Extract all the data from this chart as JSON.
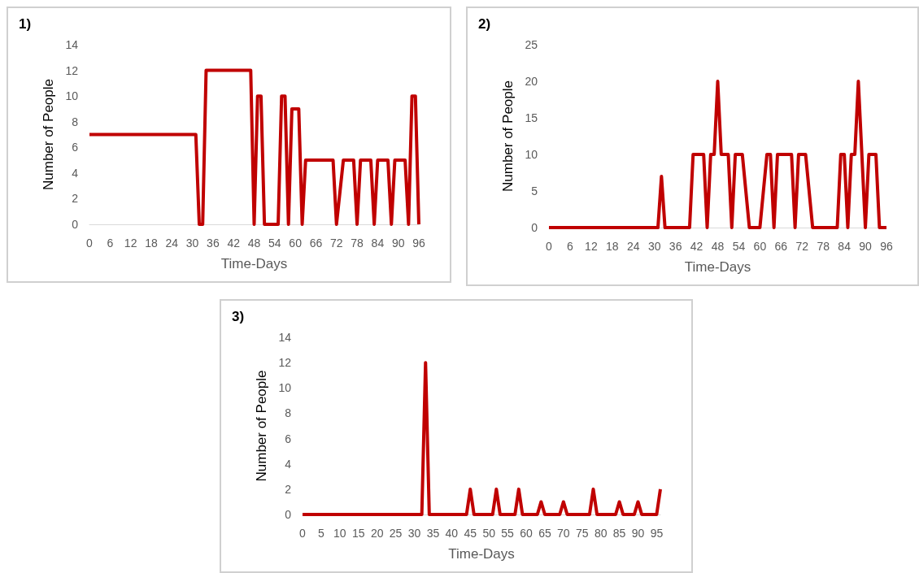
{
  "chart_data": [
    {
      "type": "line",
      "title": "1)",
      "xlabel": "Time-Days",
      "ylabel": "Number of People",
      "marker": "none",
      "x": [
        0,
        31,
        32,
        33,
        34,
        47,
        48,
        49,
        50,
        51,
        55,
        56,
        57,
        58,
        59,
        61,
        62,
        63,
        71,
        72,
        74,
        77,
        78,
        79,
        82,
        83,
        84,
        87,
        88,
        89,
        92,
        93,
        94,
        95,
        96
      ],
      "series": [
        {
          "color": "#c00000",
          "values": [
            7,
            7,
            0,
            0,
            12,
            12,
            0,
            10,
            10,
            0,
            0,
            10,
            10,
            0,
            9,
            9,
            0,
            5,
            5,
            0,
            5,
            5,
            0,
            5,
            5,
            0,
            5,
            5,
            0,
            5,
            5,
            0,
            10,
            10,
            0
          ]
        }
      ],
      "xlim": [
        0,
        96
      ],
      "xticks": [
        0,
        6,
        12,
        18,
        24,
        30,
        36,
        42,
        48,
        54,
        60,
        66,
        72,
        78,
        84,
        90,
        96
      ],
      "ylim": [
        0,
        14
      ],
      "yticks": [
        0,
        2,
        4,
        6,
        8,
        10,
        12,
        14
      ]
    },
    {
      "type": "line",
      "title": "2)",
      "xlabel": "Time-Days",
      "ylabel": "Number of People",
      "marker": "none",
      "x": [
        0,
        31,
        32,
        33,
        40,
        41,
        44,
        45,
        46,
        47,
        48,
        49,
        51,
        52,
        53,
        55,
        57,
        60,
        62,
        63,
        64,
        65,
        69,
        70,
        71,
        73,
        75,
        82,
        83,
        84,
        85,
        86,
        87,
        88,
        90,
        91,
        93,
        94,
        96
      ],
      "series": [
        {
          "color": "#c00000",
          "values": [
            0,
            0,
            7,
            0,
            0,
            10,
            10,
            0,
            10,
            10,
            20,
            10,
            10,
            0,
            10,
            10,
            0,
            0,
            10,
            10,
            0,
            10,
            10,
            0,
            10,
            10,
            0,
            0,
            10,
            10,
            0,
            10,
            10,
            20,
            0,
            10,
            10,
            0,
            0
          ]
        }
      ],
      "xlim": [
        0,
        96
      ],
      "xticks": [
        0,
        6,
        12,
        18,
        24,
        30,
        36,
        42,
        48,
        54,
        60,
        66,
        72,
        78,
        84,
        90,
        96
      ],
      "ylim": [
        0,
        25
      ],
      "yticks": [
        0,
        5,
        10,
        15,
        20,
        25
      ]
    },
    {
      "type": "line",
      "title": "3)",
      "xlabel": "Time-Days",
      "ylabel": "Number of People",
      "marker": "none",
      "x": [
        0,
        32,
        33,
        34,
        44,
        45,
        46,
        51,
        52,
        53,
        57,
        58,
        59,
        63,
        64,
        65,
        69,
        70,
        71,
        77,
        78,
        79,
        84,
        85,
        86,
        89,
        90,
        91,
        95,
        96
      ],
      "series": [
        {
          "color": "#c00000",
          "values": [
            0,
            0,
            12,
            0,
            0,
            2,
            0,
            0,
            2,
            0,
            0,
            2,
            0,
            0,
            1,
            0,
            0,
            1,
            0,
            0,
            2,
            0,
            0,
            1,
            0,
            0,
            1,
            0,
            0,
            2
          ]
        }
      ],
      "xlim": [
        0,
        96
      ],
      "xticks": [
        0,
        5,
        10,
        15,
        20,
        25,
        30,
        35,
        40,
        45,
        50,
        55,
        60,
        65,
        70,
        75,
        80,
        85,
        90,
        95
      ],
      "ylim": [
        0,
        14
      ],
      "yticks": [
        0,
        2,
        4,
        6,
        8,
        10,
        12,
        14
      ]
    }
  ]
}
